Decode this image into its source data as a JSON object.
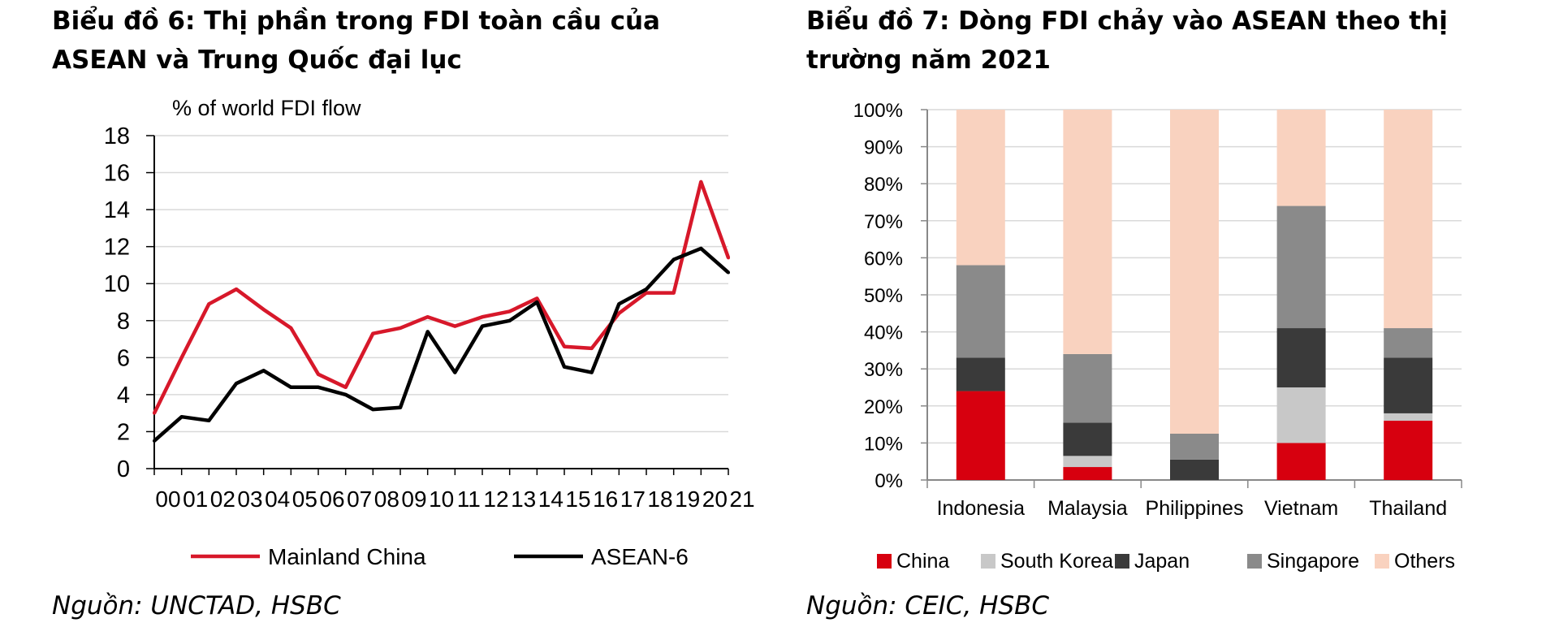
{
  "left": {
    "title_line1": "Biểu đồ 6: Thị phần trong FDI toàn cầu của",
    "title_line2": "ASEAN và Trung Quốc đại lục",
    "source": "Nguồn: UNCTAD, HSBC"
  },
  "right": {
    "title_line1": "Biểu đồ 7: Dòng FDI chảy vào ASEAN theo thị",
    "title_line2": "trường năm 2021",
    "source": "Nguồn: CEIC, HSBC"
  },
  "chart_data": [
    {
      "type": "line",
      "title": "",
      "ylabel": "% of world FDI flow",
      "xlabel": "",
      "ylim": [
        0,
        18
      ],
      "yticks": [
        0,
        2,
        4,
        6,
        8,
        10,
        12,
        14,
        16,
        18
      ],
      "x": [
        "00",
        "01",
        "02",
        "03",
        "04",
        "05",
        "06",
        "07",
        "08",
        "09",
        "10",
        "11",
        "12",
        "13",
        "14",
        "15",
        "16",
        "17",
        "18",
        "19",
        "20",
        "21"
      ],
      "grid": true,
      "legend": "bottom",
      "series": [
        {
          "name": "Mainland China",
          "color": "#d7182a",
          "values": [
            3.0,
            6.0,
            8.9,
            9.7,
            8.6,
            7.6,
            5.1,
            4.4,
            7.3,
            7.6,
            8.2,
            7.7,
            8.2,
            8.5,
            9.2,
            6.6,
            6.5,
            8.4,
            9.5,
            9.5,
            15.5,
            11.4
          ]
        },
        {
          "name": "ASEAN-6",
          "color": "#000000",
          "values": [
            1.5,
            2.8,
            2.6,
            4.6,
            5.3,
            4.4,
            4.4,
            4.0,
            3.2,
            3.3,
            7.4,
            5.2,
            7.7,
            8.0,
            9.0,
            5.5,
            5.2,
            8.9,
            9.7,
            11.3,
            11.9,
            10.6
          ]
        }
      ]
    },
    {
      "type": "bar",
      "stacked": true,
      "title": "",
      "xlabel": "",
      "ylabel": "",
      "ylim": [
        0,
        100
      ],
      "yticks": [
        "0%",
        "10%",
        "20%",
        "30%",
        "40%",
        "50%",
        "60%",
        "70%",
        "80%",
        "90%",
        "100%"
      ],
      "categories": [
        "Indonesia",
        "Malaysia",
        "Philippines",
        "Vietnam",
        "Thailand"
      ],
      "grid": true,
      "legend": "bottom",
      "series": [
        {
          "name": "China",
          "color": "#d7000f",
          "values": [
            24,
            3.5,
            0,
            10,
            16
          ]
        },
        {
          "name": "South Korea",
          "color": "#c8c8c8",
          "values": [
            0,
            3,
            0,
            15,
            2
          ]
        },
        {
          "name": "Japan",
          "color": "#3a3a3a",
          "values": [
            9,
            9,
            5.5,
            16,
            15
          ]
        },
        {
          "name": "Singapore",
          "color": "#8a8a8a",
          "values": [
            25,
            18.5,
            7,
            33,
            8
          ]
        },
        {
          "name": "Others",
          "color": "#f9d2bf",
          "values": [
            42,
            66,
            87.5,
            26,
            59
          ]
        }
      ]
    }
  ]
}
